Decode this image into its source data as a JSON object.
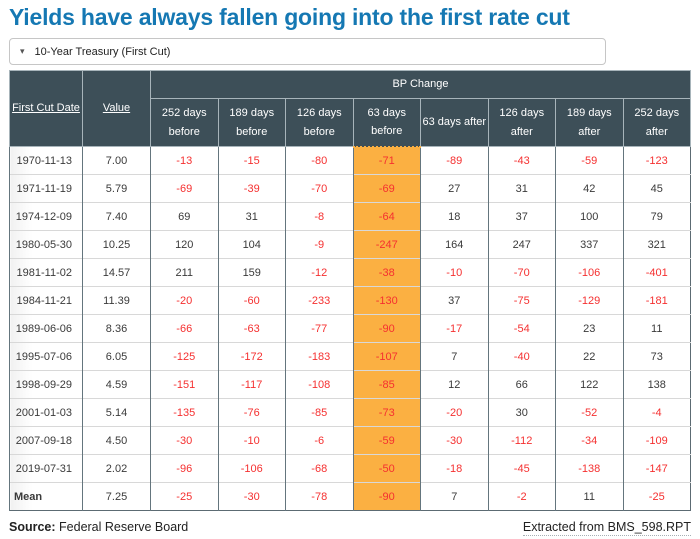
{
  "title": "Yields have always fallen going into the first rate cut",
  "dropdown": {
    "caret": "▾",
    "selected_option": "10-Year Treasury (First Cut)"
  },
  "table": {
    "header": {
      "first_cut_date": "First Cut Date",
      "value": "Value",
      "bp_change": "BP Change",
      "periods": [
        "252 days before",
        "189 days before",
        "126 days before",
        "63 days before",
        "63 days after",
        "126 days after",
        "189 days after",
        "252 days after"
      ]
    },
    "highlight_column_index": 3,
    "rows": [
      {
        "date": "1970-11-13",
        "value": "7.00",
        "bp": [
          -13,
          -15,
          -80,
          -71,
          -89,
          -43,
          -59,
          -123
        ]
      },
      {
        "date": "1971-11-19",
        "value": "5.79",
        "bp": [
          -69,
          -39,
          -70,
          -69,
          27,
          31,
          42,
          45
        ]
      },
      {
        "date": "1974-12-09",
        "value": "7.40",
        "bp": [
          69,
          31,
          -8,
          -64,
          18,
          37,
          100,
          79
        ]
      },
      {
        "date": "1980-05-30",
        "value": "10.25",
        "bp": [
          120,
          104,
          -9,
          -247,
          164,
          247,
          337,
          321
        ]
      },
      {
        "date": "1981-11-02",
        "value": "14.57",
        "bp": [
          211,
          159,
          -12,
          -38,
          -10,
          -70,
          -106,
          -401
        ]
      },
      {
        "date": "1984-11-21",
        "value": "11.39",
        "bp": [
          -20,
          -60,
          -233,
          -130,
          37,
          -75,
          -129,
          -181
        ]
      },
      {
        "date": "1989-06-06",
        "value": "8.36",
        "bp": [
          -66,
          -63,
          -77,
          -90,
          -17,
          -54,
          23,
          11
        ]
      },
      {
        "date": "1995-07-06",
        "value": "6.05",
        "bp": [
          -125,
          -172,
          -183,
          -107,
          7,
          -40,
          22,
          73
        ]
      },
      {
        "date": "1998-09-29",
        "value": "4.59",
        "bp": [
          -151,
          -117,
          -108,
          -85,
          12,
          66,
          122,
          138
        ]
      },
      {
        "date": "2001-01-03",
        "value": "5.14",
        "bp": [
          -135,
          -76,
          -85,
          -73,
          -20,
          30,
          -52,
          -4
        ]
      },
      {
        "date": "2007-09-18",
        "value": "4.50",
        "bp": [
          -30,
          -10,
          -6,
          -59,
          -30,
          -112,
          -34,
          -109
        ]
      },
      {
        "date": "2019-07-31",
        "value": "2.02",
        "bp": [
          -96,
          -106,
          -68,
          -50,
          -18,
          -45,
          -138,
          -147
        ]
      },
      {
        "date": "Mean",
        "value": "7.25",
        "bp": [
          -25,
          -30,
          -78,
          -90,
          7,
          -2,
          11,
          -25
        ],
        "is_mean": true
      }
    ]
  },
  "chart_data": {
    "type": "table",
    "title": "Yields have always fallen going into the first rate cut",
    "series_selector": "10-Year Treasury (First Cut)",
    "columns": [
      "First Cut Date",
      "Value",
      "252 days before",
      "189 days before",
      "126 days before",
      "63 days before",
      "63 days after",
      "126 days after",
      "189 days after",
      "252 days after"
    ],
    "group_header": {
      "label": "BP Change",
      "spans_columns": [
        "252 days before",
        "189 days before",
        "126 days before",
        "63 days before",
        "63 days after",
        "126 days after",
        "189 days after",
        "252 days after"
      ]
    },
    "highlighted_column": "63 days before",
    "rows": [
      [
        "1970-11-13",
        7.0,
        -13,
        -15,
        -80,
        -71,
        -89,
        -43,
        -59,
        -123
      ],
      [
        "1971-11-19",
        5.79,
        -69,
        -39,
        -70,
        -69,
        27,
        31,
        42,
        45
      ],
      [
        "1974-12-09",
        7.4,
        69,
        31,
        -8,
        -64,
        18,
        37,
        100,
        79
      ],
      [
        "1980-05-30",
        10.25,
        120,
        104,
        -9,
        -247,
        164,
        247,
        337,
        321
      ],
      [
        "1981-11-02",
        14.57,
        211,
        159,
        -12,
        -38,
        -10,
        -70,
        -106,
        -401
      ],
      [
        "1984-11-21",
        11.39,
        -20,
        -60,
        -233,
        -130,
        37,
        -75,
        -129,
        -181
      ],
      [
        "1989-06-06",
        8.36,
        -66,
        -63,
        -77,
        -90,
        -17,
        -54,
        23,
        11
      ],
      [
        "1995-07-06",
        6.05,
        -125,
        -172,
        -183,
        -107,
        7,
        -40,
        22,
        73
      ],
      [
        "1998-09-29",
        4.59,
        -151,
        -117,
        -108,
        -85,
        12,
        66,
        122,
        138
      ],
      [
        "2001-01-03",
        5.14,
        -135,
        -76,
        -85,
        -73,
        -20,
        30,
        -52,
        -4
      ],
      [
        "2007-09-18",
        4.5,
        -30,
        -10,
        -6,
        -59,
        -30,
        -112,
        -34,
        -109
      ],
      [
        "2019-07-31",
        2.02,
        -96,
        -106,
        -68,
        -50,
        -18,
        -45,
        -138,
        -147
      ],
      [
        "Mean",
        7.25,
        -25,
        -30,
        -78,
        -90,
        7,
        -2,
        11,
        -25
      ]
    ],
    "value_format": "negative values shown in red, 63-days-before column highlighted orange"
  },
  "footer": {
    "source_label": "Source:",
    "source_text": "Federal Reserve Board",
    "extracted_text": "Extracted from BMS_598.RPT"
  },
  "colors": {
    "title_blue": "#1578b3",
    "header_bg": "#3d4f58",
    "highlight_orange": "#fbb042",
    "negative_red": "#f53030"
  }
}
